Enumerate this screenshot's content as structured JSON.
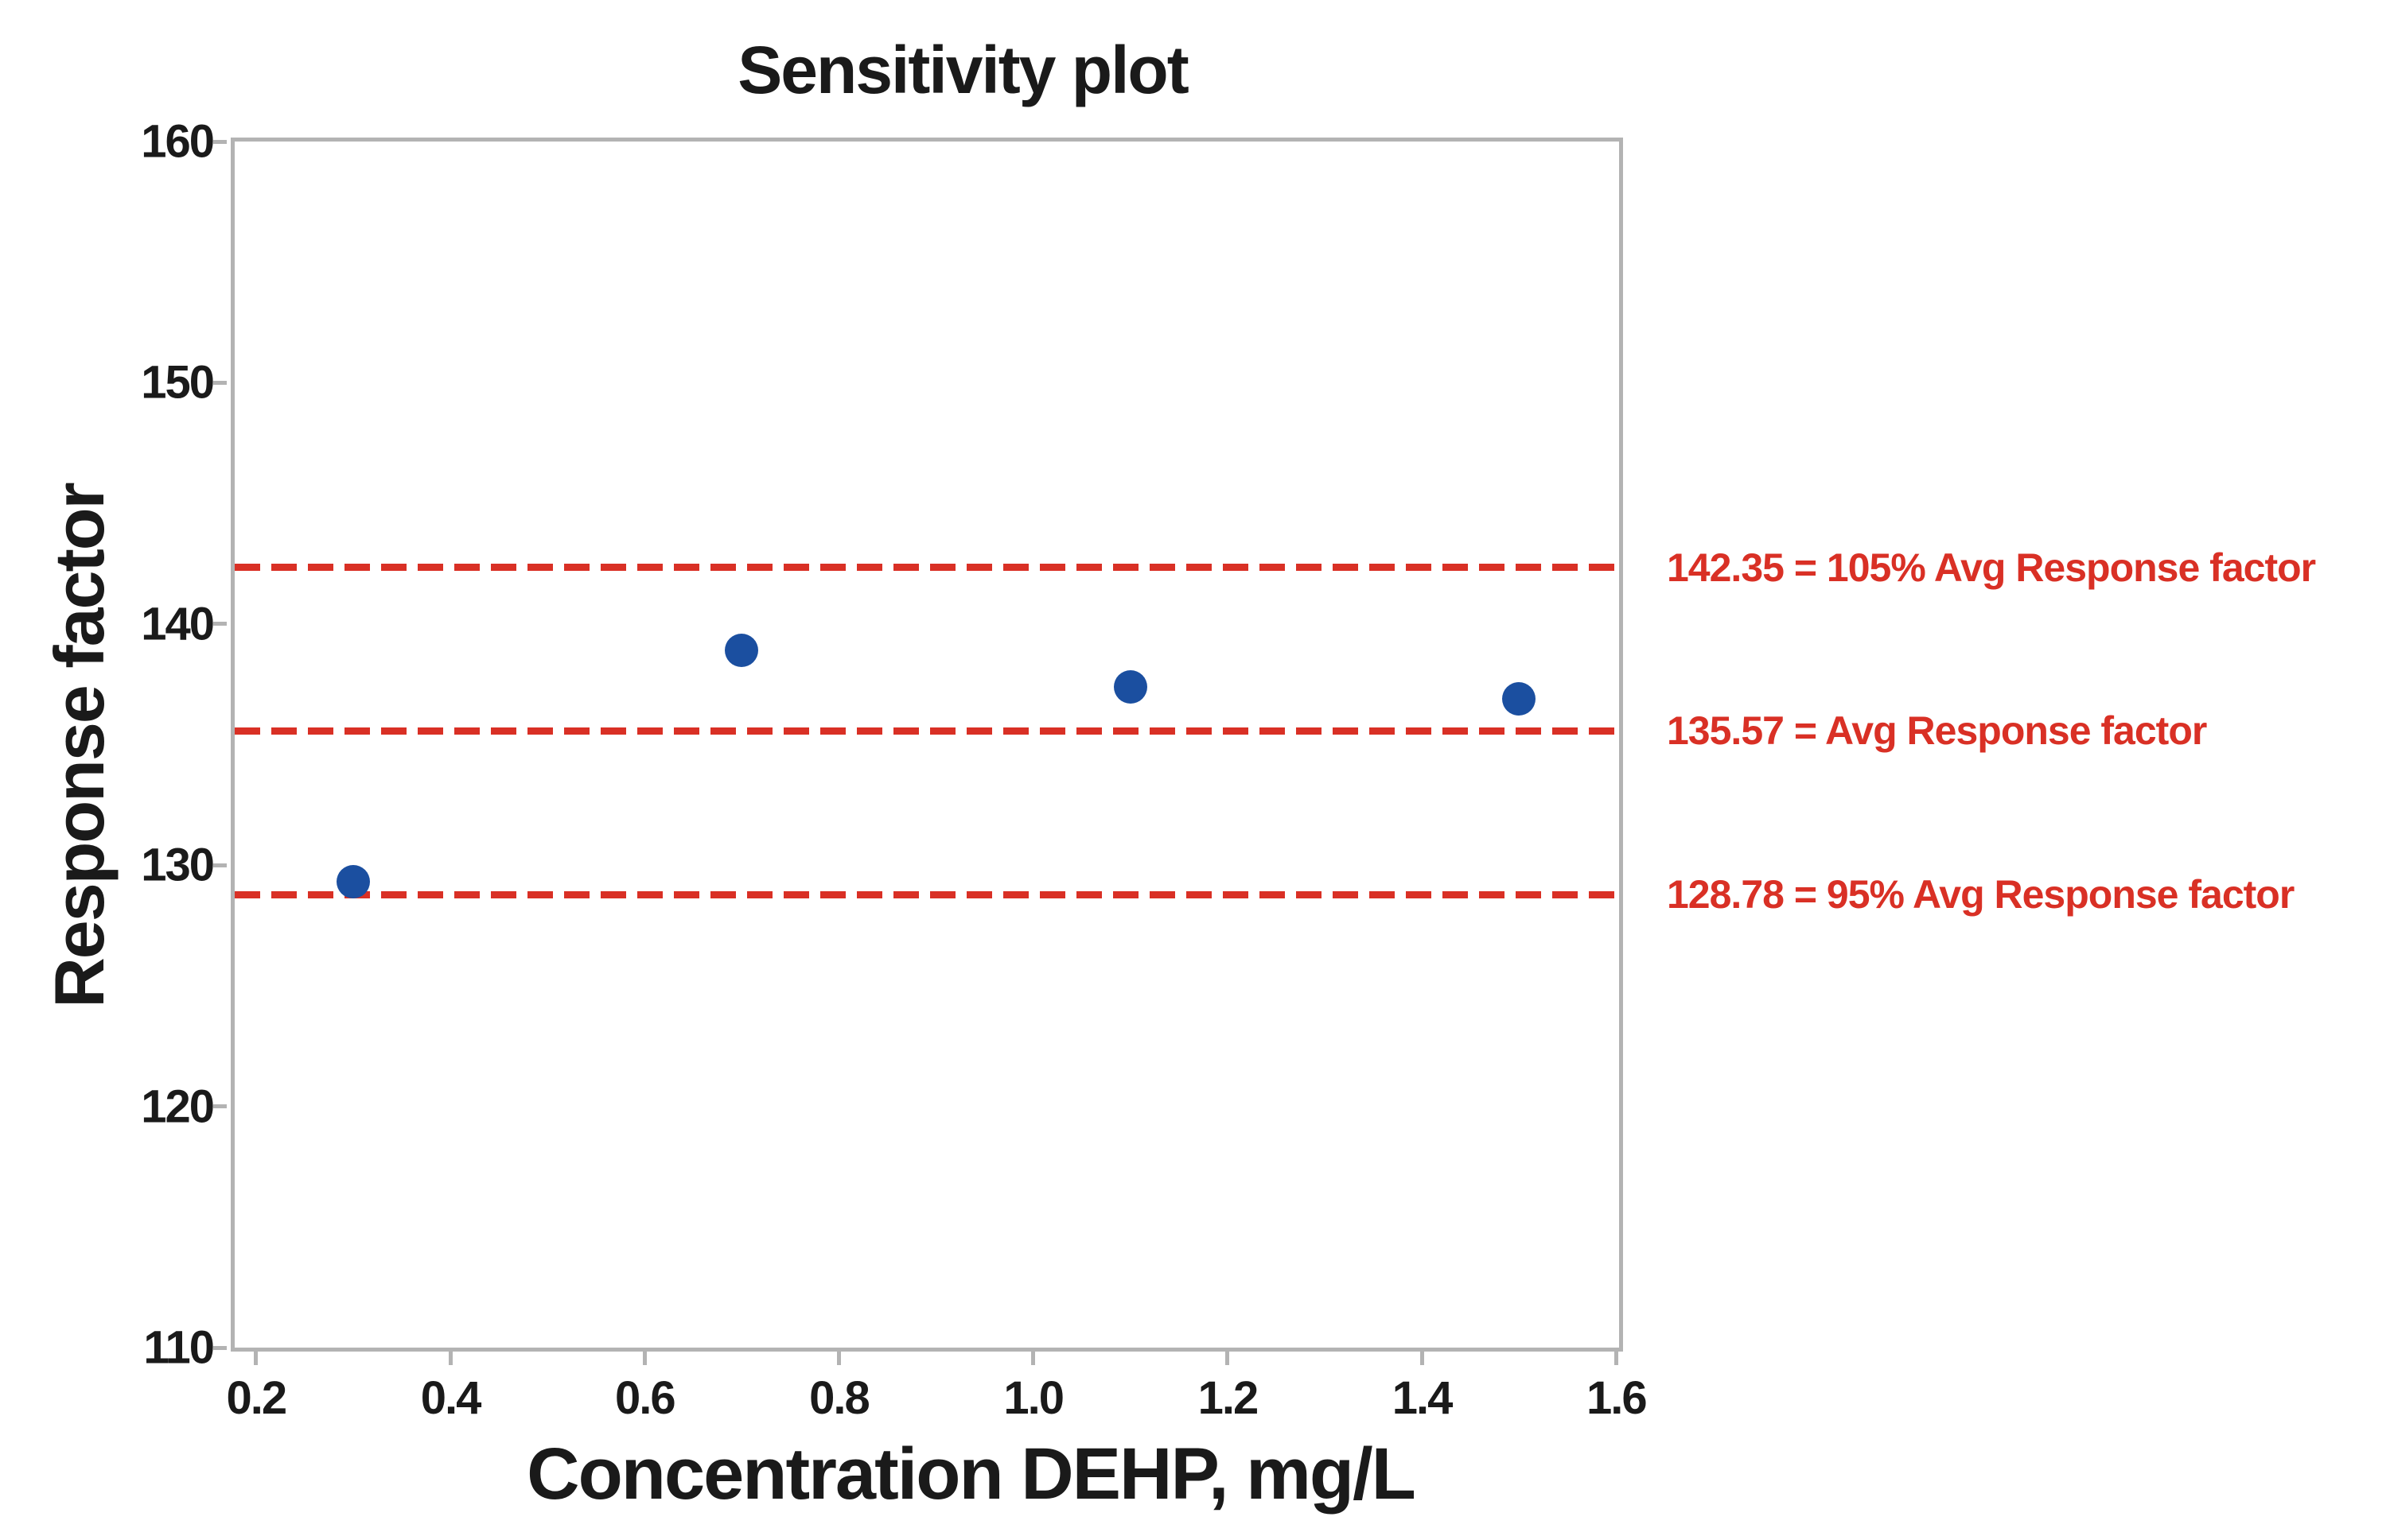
{
  "figure": {
    "background": "#ffffff"
  },
  "chart_data": {
    "type": "scatter",
    "title": "Sensitivity plot",
    "xlabel": "Concentration DEHP, mg/L",
    "ylabel": "Response factor",
    "xlim": [
      0.178,
      1.603
    ],
    "ylim": [
      110,
      160
    ],
    "x_ticks": [
      0.2,
      0.4,
      0.6,
      0.8,
      1.0,
      1.2,
      1.4,
      1.6
    ],
    "x_tick_labels": [
      "0.2",
      "0.4",
      "0.6",
      "0.8",
      "1.0",
      "1.2",
      "1.4",
      "1.6"
    ],
    "y_ticks": [
      110,
      120,
      130,
      140,
      150,
      160
    ],
    "y_tick_labels": [
      "110",
      "120",
      "130",
      "140",
      "150",
      "160"
    ],
    "grid": false,
    "legend": "none",
    "series": [
      {
        "name": "Response factor",
        "marker": "circle",
        "color": "#1b4fa0",
        "points": [
          {
            "x": 0.3,
            "y": 129.3
          },
          {
            "x": 0.7,
            "y": 138.9
          },
          {
            "x": 1.1,
            "y": 137.4
          },
          {
            "x": 1.5,
            "y": 136.9
          }
        ]
      }
    ],
    "reference_lines": [
      {
        "value": 142.35,
        "label": "142.35 = 105% Avg Response factor",
        "style": "dashed",
        "color": "#d93025"
      },
      {
        "value": 135.57,
        "label": "135.57 = Avg Response factor",
        "style": "dashed",
        "color": "#d93025"
      },
      {
        "value": 128.78,
        "label": "128.78 = 95% Avg Response factor",
        "style": "dashed",
        "color": "#d93025"
      }
    ],
    "colors": {
      "point": "#1b4fa0",
      "reference": "#d93025",
      "axis": "#b3b3b3",
      "text": "#1a1a1a"
    }
  }
}
